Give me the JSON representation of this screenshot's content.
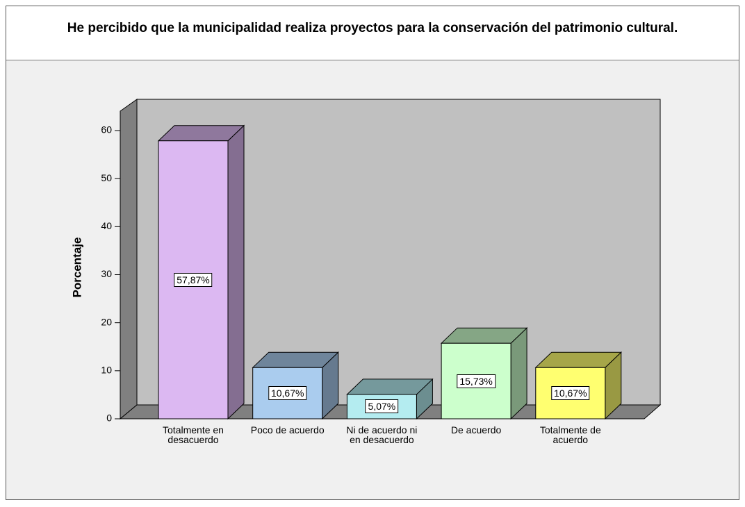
{
  "chart_data": {
    "type": "bar3d",
    "title": "He percibido que la municipalidad realiza proyectos para la conservación del patrimonio cultural.",
    "y_label": "Porcentaje",
    "categories": [
      "Totalmente en desacuerdo",
      "Poco de acuerdo",
      "Ni de acuerdo ni en desacuerdo",
      "De acuerdo",
      "Totalmente de acuerdo"
    ],
    "values": [
      57.87,
      10.67,
      5.07,
      15.73,
      10.67
    ],
    "value_labels": [
      "57,87%",
      "10,67%",
      "5,07%",
      "15,73%",
      "10,67%"
    ],
    "colors": [
      "#dcb8f2",
      "#aaccee",
      "#b4ecf0",
      "#ccffcc",
      "#ffff70"
    ],
    "ylim": [
      0,
      64
    ],
    "yticks": [
      0,
      10,
      20,
      30,
      40,
      50,
      60
    ]
  }
}
